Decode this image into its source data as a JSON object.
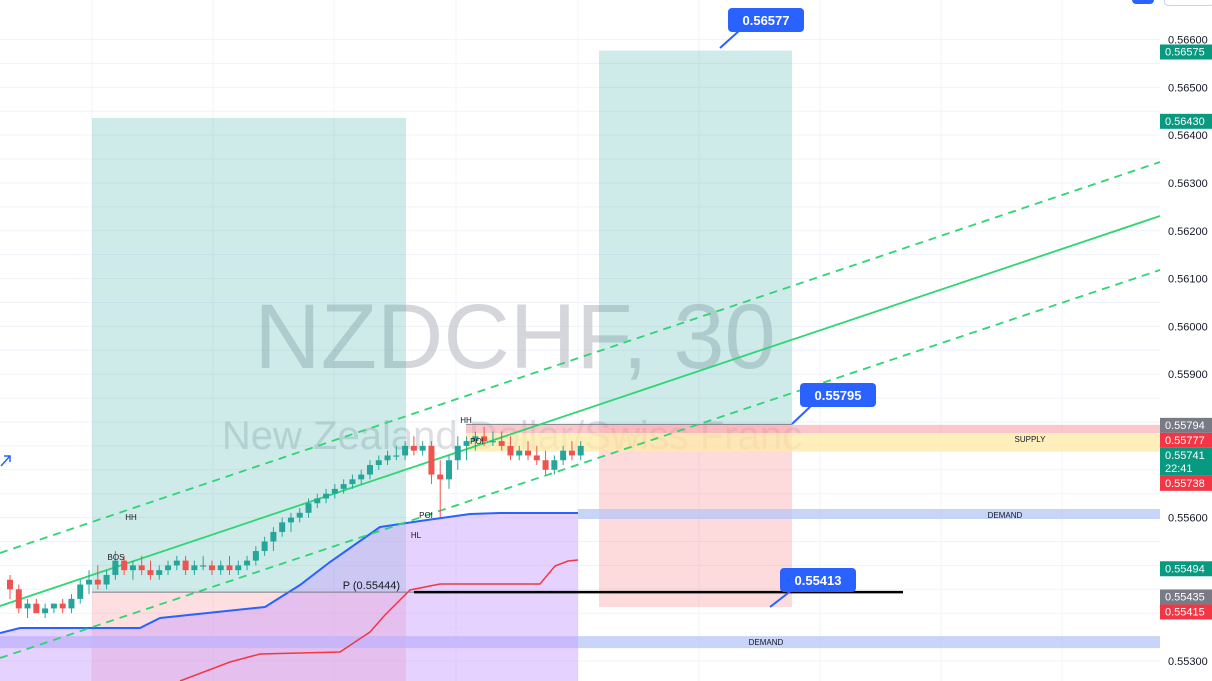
{
  "watermark": {
    "symbol": "NZDCHF, 30",
    "description": "New Zealand Dollar/Swiss Franc"
  },
  "colors": {
    "up": "#26a69a",
    "down": "#ef5350",
    "channel": "#2ed573",
    "blue_line": "#2962ff",
    "red_line": "#f23645",
    "tag_blue": "#2962ff",
    "tag_gray": "#787b86",
    "tag_green": "#089981",
    "tag_red": "#f23645",
    "demand": "#b7c6f7",
    "supply": "#ffeaa7"
  },
  "icons": [
    "arrow-up-right-icon"
  ],
  "chart_data": {
    "type": "candlestick",
    "symbol": "NZDCHF",
    "timeframe": "30",
    "ylim": [
      0.553,
      0.5668
    ],
    "y_ticks": [
      "0.55300",
      "0.55600",
      "0.55900",
      "0.56000",
      "0.56100",
      "0.56200",
      "0.56300",
      "0.56400",
      "0.56500",
      "0.56600"
    ],
    "price_tags": [
      {
        "label": "0.56575",
        "value": 0.56575,
        "kind": "green"
      },
      {
        "label": "0.56430",
        "value": 0.5643,
        "kind": "green"
      },
      {
        "label": "0.55794",
        "value": 0.55794,
        "kind": "gray"
      },
      {
        "label": "0.55777",
        "value": 0.55777,
        "kind": "red"
      },
      {
        "label": "0.55741",
        "value": 0.55741,
        "kind": "green",
        "sub": "22:41"
      },
      {
        "label": "0.55738",
        "value": 0.55738,
        "kind": "red"
      },
      {
        "label": "0.55494",
        "value": 0.55494,
        "kind": "green"
      },
      {
        "label": "0.55435",
        "value": 0.55435,
        "kind": "gray"
      },
      {
        "label": "0.55415",
        "value": 0.55415,
        "kind": "red"
      }
    ],
    "callouts": [
      {
        "label": "0.56577",
        "value": 0.56577
      },
      {
        "label": "0.55795",
        "value": 0.55795
      },
      {
        "label": "0.55413",
        "value": 0.55413
      }
    ],
    "pivot_label": "P (0.55444)",
    "pivot_value": 0.55444,
    "zones": [
      {
        "label": "SUPPLY",
        "top": 0.55777,
        "bottom": 0.55738
      },
      {
        "label": "DEMAND",
        "top": 0.55618,
        "bottom": 0.55598
      },
      {
        "label": "DEMAND",
        "top": 0.55352,
        "bottom": 0.55327
      }
    ],
    "annotations": [
      "BOS",
      "HH",
      "HH",
      "POI",
      "POI",
      "HL"
    ],
    "candles_ohlc": [
      [
        0.5547,
        0.5548,
        0.5543,
        0.5545
      ],
      [
        0.5545,
        0.5546,
        0.554,
        0.5541
      ],
      [
        0.5541,
        0.5543,
        0.5539,
        0.5542
      ],
      [
        0.5542,
        0.5543,
        0.554,
        0.554
      ],
      [
        0.554,
        0.5542,
        0.5539,
        0.5541
      ],
      [
        0.5541,
        0.5542,
        0.554,
        0.5542
      ],
      [
        0.5542,
        0.5543,
        0.554,
        0.5541
      ],
      [
        0.5541,
        0.5544,
        0.554,
        0.5543
      ],
      [
        0.5543,
        0.5547,
        0.5542,
        0.5546
      ],
      [
        0.5546,
        0.5549,
        0.5544,
        0.5547
      ],
      [
        0.5547,
        0.555,
        0.5545,
        0.5546
      ],
      [
        0.5546,
        0.5549,
        0.5545,
        0.5548
      ],
      [
        0.5548,
        0.5553,
        0.5547,
        0.5551
      ],
      [
        0.5551,
        0.5552,
        0.5548,
        0.5549
      ],
      [
        0.5549,
        0.5551,
        0.5547,
        0.555
      ],
      [
        0.555,
        0.5552,
        0.5548,
        0.5549
      ],
      [
        0.5549,
        0.5551,
        0.5547,
        0.5548
      ],
      [
        0.5548,
        0.555,
        0.5547,
        0.5549
      ],
      [
        0.5549,
        0.5551,
        0.5548,
        0.555
      ],
      [
        0.555,
        0.5552,
        0.5549,
        0.5551
      ],
      [
        0.5551,
        0.5552,
        0.5548,
        0.5549
      ],
      [
        0.5549,
        0.5551,
        0.5548,
        0.555
      ],
      [
        0.555,
        0.5552,
        0.5549,
        0.555
      ],
      [
        0.555,
        0.5551,
        0.5548,
        0.5549
      ],
      [
        0.5549,
        0.5551,
        0.5548,
        0.555
      ],
      [
        0.555,
        0.5552,
        0.5548,
        0.5549
      ],
      [
        0.5549,
        0.5551,
        0.5548,
        0.555
      ],
      [
        0.555,
        0.5552,
        0.5549,
        0.5551
      ],
      [
        0.5551,
        0.5554,
        0.555,
        0.5553
      ],
      [
        0.5553,
        0.5556,
        0.5552,
        0.5555
      ],
      [
        0.5555,
        0.5558,
        0.5553,
        0.5557
      ],
      [
        0.5557,
        0.556,
        0.5556,
        0.5559
      ],
      [
        0.5559,
        0.5561,
        0.5557,
        0.556
      ],
      [
        0.556,
        0.5562,
        0.5559,
        0.5561
      ],
      [
        0.5561,
        0.5564,
        0.556,
        0.5563
      ],
      [
        0.5563,
        0.5565,
        0.5562,
        0.5564
      ],
      [
        0.5564,
        0.5566,
        0.5563,
        0.5565
      ],
      [
        0.5565,
        0.5567,
        0.5564,
        0.5566
      ],
      [
        0.5566,
        0.5568,
        0.5565,
        0.5567
      ],
      [
        0.5567,
        0.5569,
        0.5566,
        0.5568
      ],
      [
        0.5568,
        0.557,
        0.5567,
        0.5569
      ],
      [
        0.5569,
        0.5572,
        0.5568,
        0.5571
      ],
      [
        0.5571,
        0.5573,
        0.557,
        0.5572
      ],
      [
        0.5572,
        0.5574,
        0.5571,
        0.5573
      ],
      [
        0.5573,
        0.5575,
        0.5572,
        0.5573
      ],
      [
        0.5573,
        0.5576,
        0.5572,
        0.5575
      ],
      [
        0.5575,
        0.5577,
        0.5573,
        0.5574
      ],
      [
        0.5574,
        0.5576,
        0.5573,
        0.5575
      ],
      [
        0.5575,
        0.5576,
        0.5567,
        0.5569
      ],
      [
        0.5569,
        0.5572,
        0.556,
        0.5568
      ],
      [
        0.5568,
        0.5573,
        0.5566,
        0.5572
      ],
      [
        0.5572,
        0.5577,
        0.557,
        0.5575
      ],
      [
        0.5575,
        0.5577,
        0.5572,
        0.5576
      ],
      [
        0.5576,
        0.5578,
        0.5574,
        0.5577
      ],
      [
        0.5577,
        0.5579,
        0.5575,
        0.5576
      ],
      [
        0.5576,
        0.5578,
        0.5575,
        0.5576
      ],
      [
        0.5576,
        0.5578,
        0.5574,
        0.5575
      ],
      [
        0.5575,
        0.5577,
        0.5572,
        0.5573
      ],
      [
        0.5573,
        0.5575,
        0.5572,
        0.5574
      ],
      [
        0.5574,
        0.5576,
        0.5572,
        0.5573
      ],
      [
        0.5573,
        0.5575,
        0.5571,
        0.5572
      ],
      [
        0.5572,
        0.5574,
        0.5569,
        0.557
      ],
      [
        0.557,
        0.5573,
        0.5569,
        0.5572
      ],
      [
        0.5572,
        0.5575,
        0.5571,
        0.5574
      ],
      [
        0.5574,
        0.5576,
        0.5572,
        0.5573
      ],
      [
        0.5573,
        0.5576,
        0.5572,
        0.5575
      ]
    ],
    "grid": true
  }
}
